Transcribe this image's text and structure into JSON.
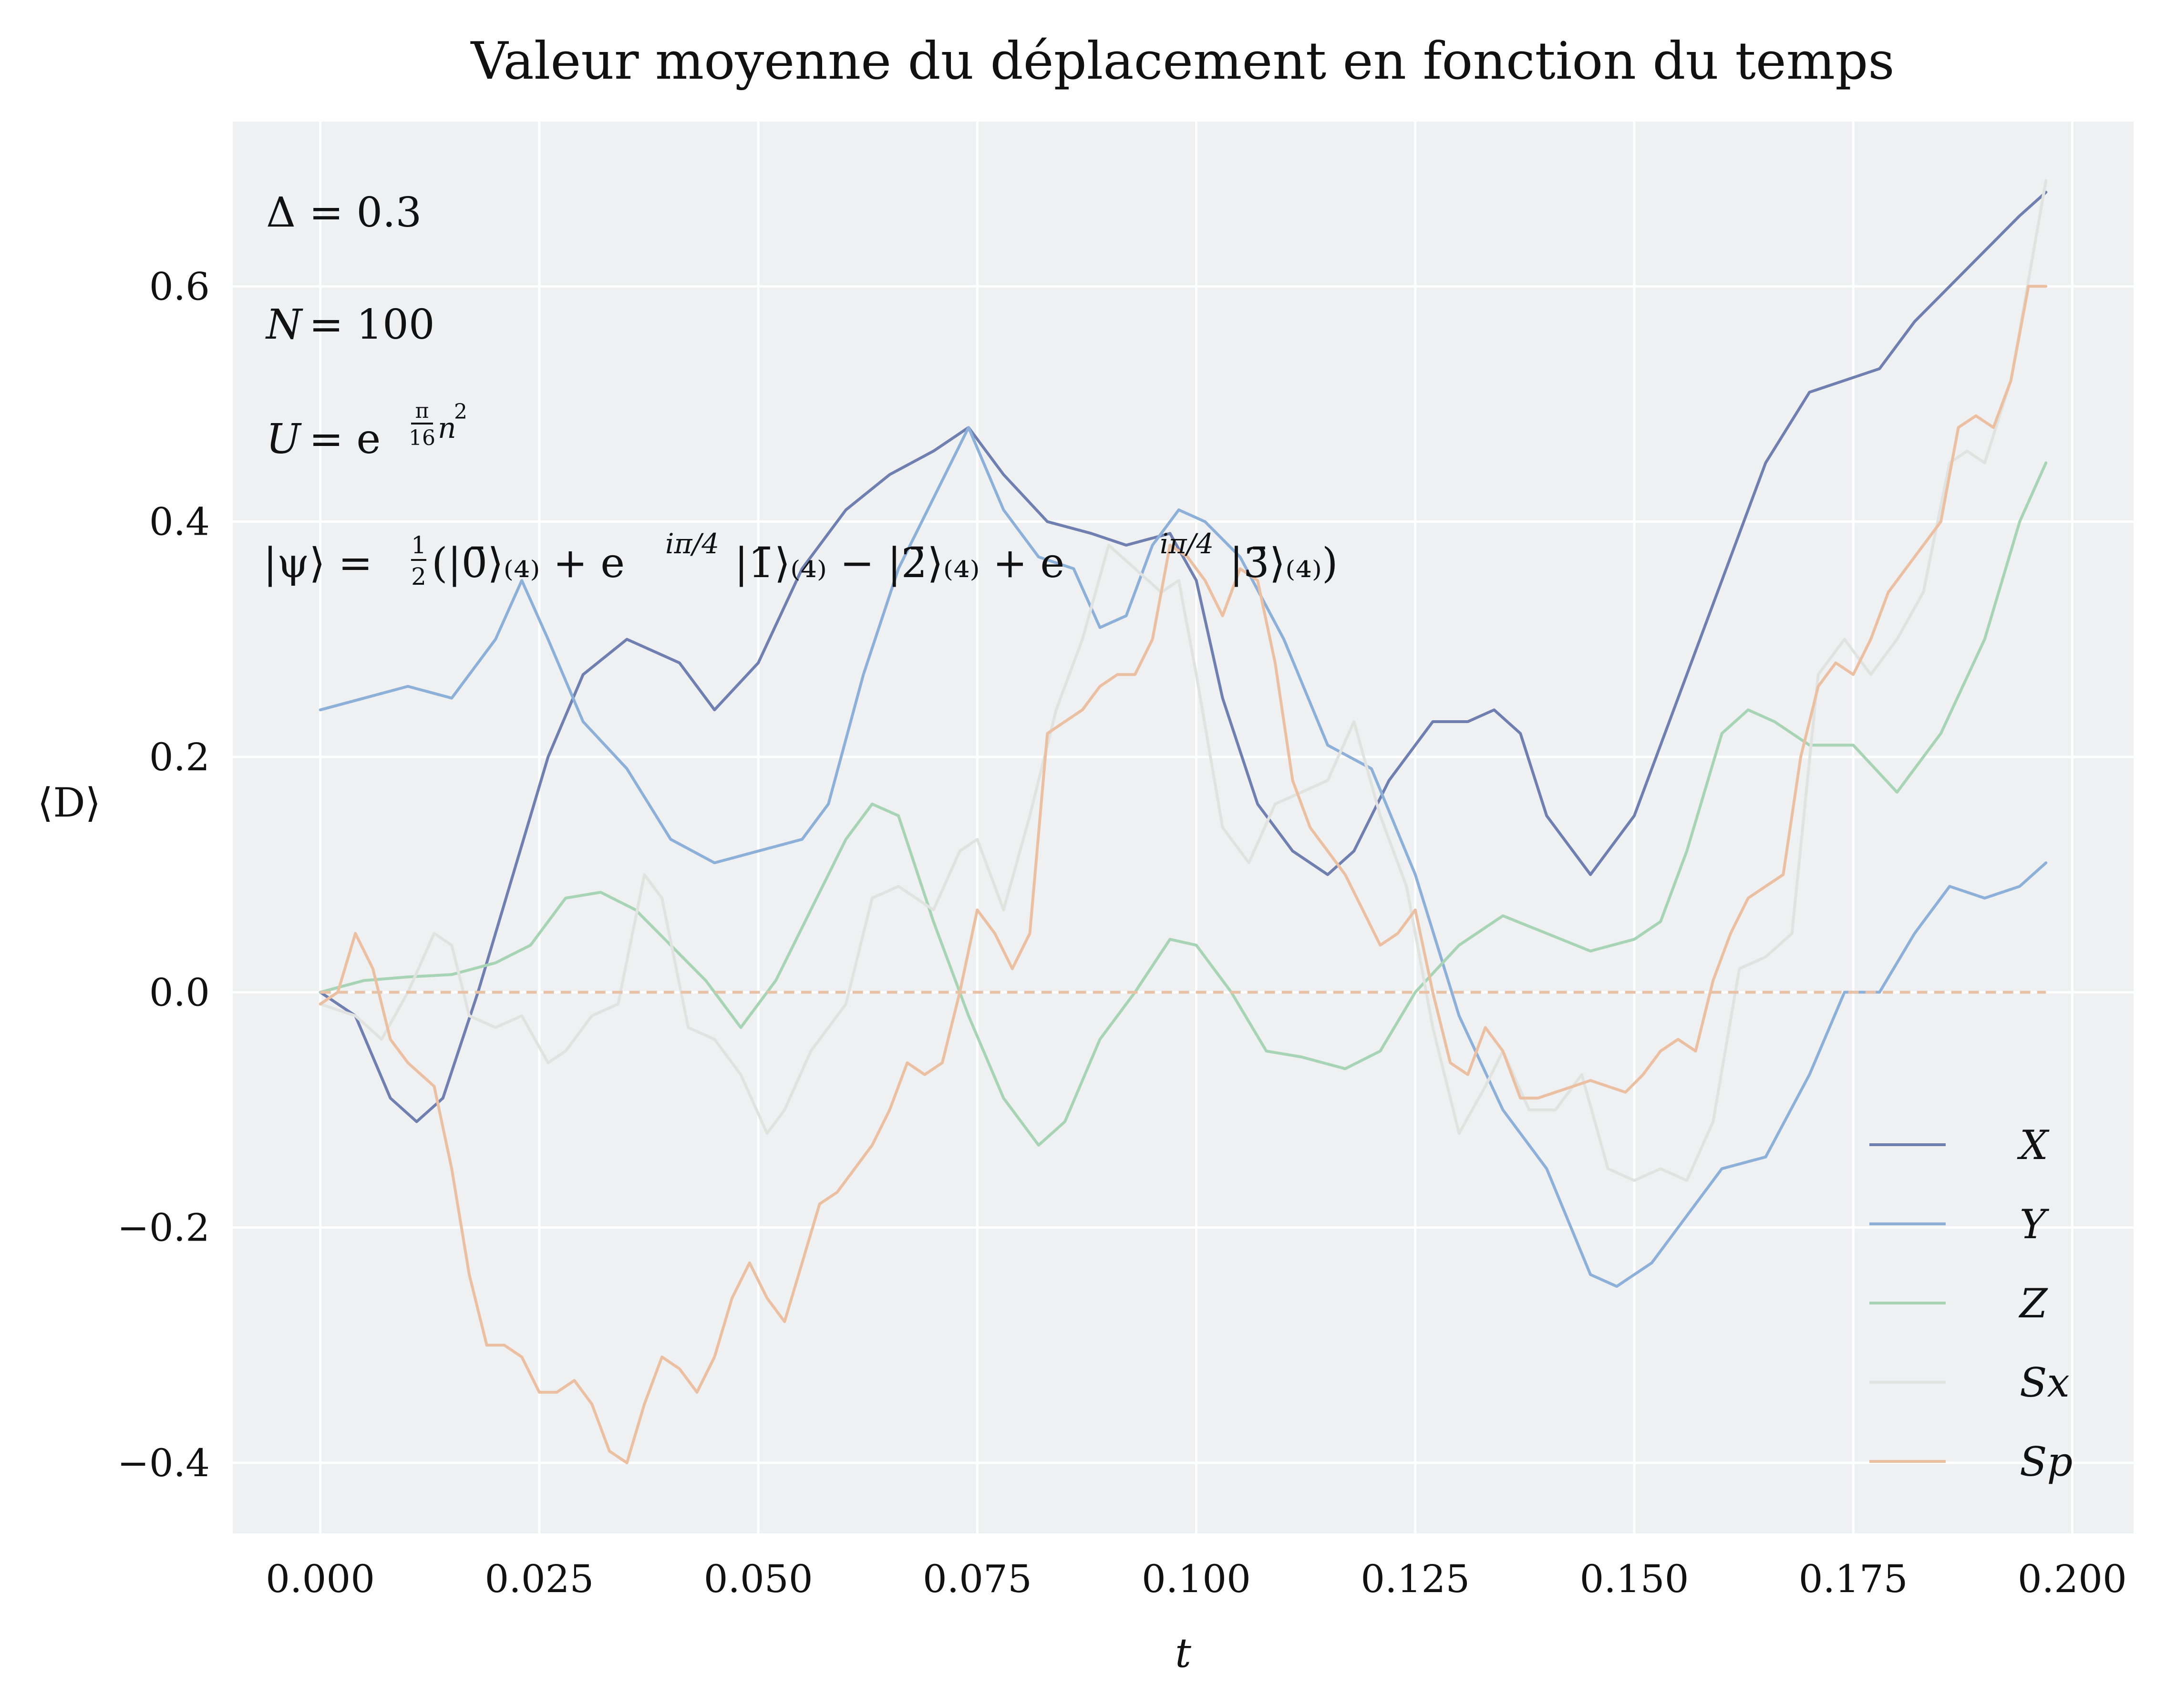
{
  "chart_data": {
    "type": "line",
    "title": "Valeur moyenne du déplacement en fonction du temps",
    "xlabel": "t",
    "ylabel": "⟨D⟩",
    "xlim": [
      -0.01,
      0.207
    ],
    "ylim": [
      -0.46,
      0.74
    ],
    "xticks": [
      0.0,
      0.025,
      0.05,
      0.075,
      0.1,
      0.125,
      0.15,
      0.175,
      0.2
    ],
    "xtick_labels": [
      "0.000",
      "0.025",
      "0.050",
      "0.075",
      "0.100",
      "0.125",
      "0.150",
      "0.175",
      "0.200"
    ],
    "yticks": [
      -0.4,
      -0.2,
      0.0,
      0.2,
      0.4,
      0.6
    ],
    "ytick_labels": [
      "−0.4",
      "−0.2",
      "0.0",
      "0.2",
      "0.4",
      "0.6"
    ],
    "grid": true,
    "legend": "bottom-right",
    "annotations": {
      "delta_sym": "Δ",
      "delta_eq": "= 0.3",
      "n_sym": "N",
      "n_eq": "= 100",
      "u_sym": "U",
      "u_eq": "= e",
      "u_exp_num": "π",
      "u_exp_den": "16",
      "u_exp_tail": "n",
      "u_exp_sq": "2",
      "psi_lhs": "|ψ⟩ =",
      "psi_half_num": "1",
      "psi_half_den": "2",
      "psi_rhs": "(|0̄⟩₍₄₎ + e",
      "psi_phase1": "iπ/4",
      "psi_mid": "|1̄⟩₍₄₎ − |2̄⟩₍₄₎ + e",
      "psi_phase2": "iπ/4",
      "psi_end": "|3̄⟩₍₄₎)"
    },
    "reference_line": {
      "y": 0.0,
      "style": "dashed",
      "color": "#e8c2a6"
    },
    "series": [
      {
        "name": "X",
        "color": "#6f7fb0",
        "x": [
          0.0,
          0.004,
          0.008,
          0.011,
          0.014,
          0.018,
          0.022,
          0.026,
          0.03,
          0.035,
          0.041,
          0.045,
          0.05,
          0.055,
          0.06,
          0.065,
          0.07,
          0.074,
          0.078,
          0.083,
          0.088,
          0.092,
          0.097,
          0.1,
          0.103,
          0.107,
          0.111,
          0.115,
          0.118,
          0.122,
          0.127,
          0.131,
          0.134,
          0.137,
          0.14,
          0.145,
          0.15,
          0.155,
          0.16,
          0.165,
          0.17,
          0.174,
          0.178,
          0.182,
          0.186,
          0.19,
          0.194,
          0.197
        ],
        "y": [
          0.0,
          -0.02,
          -0.09,
          -0.11,
          -0.09,
          0.0,
          0.1,
          0.2,
          0.27,
          0.3,
          0.28,
          0.24,
          0.28,
          0.36,
          0.41,
          0.44,
          0.46,
          0.48,
          0.44,
          0.4,
          0.39,
          0.38,
          0.39,
          0.35,
          0.25,
          0.16,
          0.12,
          0.1,
          0.12,
          0.18,
          0.23,
          0.23,
          0.24,
          0.22,
          0.15,
          0.1,
          0.15,
          0.25,
          0.35,
          0.45,
          0.51,
          0.52,
          0.53,
          0.57,
          0.6,
          0.63,
          0.66,
          0.68
        ]
      },
      {
        "name": "Y",
        "color": "#8db0d9",
        "x": [
          0.0,
          0.005,
          0.01,
          0.015,
          0.02,
          0.023,
          0.026,
          0.03,
          0.035,
          0.04,
          0.045,
          0.05,
          0.055,
          0.058,
          0.062,
          0.066,
          0.07,
          0.074,
          0.078,
          0.082,
          0.086,
          0.089,
          0.092,
          0.095,
          0.098,
          0.101,
          0.105,
          0.11,
          0.115,
          0.12,
          0.125,
          0.13,
          0.135,
          0.14,
          0.145,
          0.148,
          0.152,
          0.156,
          0.16,
          0.165,
          0.17,
          0.174,
          0.178,
          0.182,
          0.186,
          0.19,
          0.194,
          0.197
        ],
        "y": [
          0.24,
          0.25,
          0.26,
          0.25,
          0.3,
          0.35,
          0.3,
          0.23,
          0.19,
          0.13,
          0.11,
          0.12,
          0.13,
          0.16,
          0.27,
          0.36,
          0.42,
          0.48,
          0.41,
          0.37,
          0.36,
          0.31,
          0.32,
          0.38,
          0.41,
          0.4,
          0.37,
          0.3,
          0.21,
          0.19,
          0.1,
          -0.02,
          -0.1,
          -0.15,
          -0.24,
          -0.25,
          -0.23,
          -0.19,
          -0.15,
          -0.14,
          -0.07,
          0.0,
          0.0,
          0.05,
          0.09,
          0.08,
          0.09,
          0.11
        ]
      },
      {
        "name": "Z",
        "color": "#a6d4b4",
        "x": [
          0.0,
          0.005,
          0.01,
          0.015,
          0.02,
          0.024,
          0.028,
          0.032,
          0.036,
          0.04,
          0.044,
          0.048,
          0.052,
          0.056,
          0.06,
          0.063,
          0.066,
          0.07,
          0.074,
          0.078,
          0.082,
          0.085,
          0.089,
          0.093,
          0.097,
          0.1,
          0.104,
          0.108,
          0.112,
          0.117,
          0.121,
          0.125,
          0.13,
          0.135,
          0.14,
          0.145,
          0.15,
          0.153,
          0.156,
          0.16,
          0.163,
          0.166,
          0.17,
          0.175,
          0.18,
          0.185,
          0.19,
          0.194,
          0.197
        ],
        "y": [
          0.0,
          0.01,
          0.013,
          0.015,
          0.025,
          0.04,
          0.08,
          0.085,
          0.07,
          0.04,
          0.01,
          -0.03,
          0.01,
          0.07,
          0.13,
          0.16,
          0.15,
          0.06,
          -0.02,
          -0.09,
          -0.13,
          -0.11,
          -0.04,
          0.0,
          0.045,
          0.04,
          0.0,
          -0.05,
          -0.055,
          -0.065,
          -0.05,
          0.0,
          0.04,
          0.065,
          0.05,
          0.035,
          0.045,
          0.06,
          0.12,
          0.22,
          0.24,
          0.23,
          0.21,
          0.21,
          0.17,
          0.22,
          0.3,
          0.4,
          0.45
        ]
      },
      {
        "name": "Sx",
        "color": "#e1e3e0",
        "x": [
          0.0,
          0.004,
          0.007,
          0.01,
          0.013,
          0.015,
          0.017,
          0.02,
          0.023,
          0.026,
          0.028,
          0.031,
          0.034,
          0.037,
          0.039,
          0.042,
          0.045,
          0.048,
          0.051,
          0.053,
          0.056,
          0.06,
          0.063,
          0.066,
          0.07,
          0.073,
          0.075,
          0.078,
          0.081,
          0.084,
          0.087,
          0.09,
          0.093,
          0.096,
          0.098,
          0.1,
          0.103,
          0.106,
          0.109,
          0.112,
          0.115,
          0.118,
          0.121,
          0.124,
          0.127,
          0.13,
          0.133,
          0.135,
          0.138,
          0.141,
          0.144,
          0.147,
          0.15,
          0.153,
          0.156,
          0.159,
          0.162,
          0.165,
          0.168,
          0.171,
          0.174,
          0.177,
          0.18,
          0.183,
          0.186,
          0.188,
          0.19,
          0.193,
          0.197
        ],
        "y": [
          -0.01,
          -0.02,
          -0.04,
          0.0,
          0.05,
          0.04,
          -0.02,
          -0.03,
          -0.02,
          -0.06,
          -0.05,
          -0.02,
          -0.01,
          0.1,
          0.08,
          -0.03,
          -0.04,
          -0.07,
          -0.12,
          -0.1,
          -0.05,
          -0.01,
          0.08,
          0.09,
          0.07,
          0.12,
          0.13,
          0.07,
          0.15,
          0.24,
          0.3,
          0.38,
          0.36,
          0.34,
          0.35,
          0.27,
          0.14,
          0.11,
          0.16,
          0.17,
          0.18,
          0.23,
          0.15,
          0.09,
          -0.03,
          -0.12,
          -0.08,
          -0.05,
          -0.1,
          -0.1,
          -0.07,
          -0.15,
          -0.16,
          -0.15,
          -0.16,
          -0.11,
          0.02,
          0.03,
          0.05,
          0.27,
          0.3,
          0.27,
          0.3,
          0.34,
          0.45,
          0.46,
          0.45,
          0.52,
          0.69
        ]
      },
      {
        "name": "Sp",
        "color": "#ebc0a2",
        "x": [
          0.0,
          0.002,
          0.004,
          0.006,
          0.008,
          0.01,
          0.013,
          0.015,
          0.017,
          0.019,
          0.021,
          0.023,
          0.025,
          0.027,
          0.029,
          0.031,
          0.033,
          0.035,
          0.037,
          0.039,
          0.041,
          0.043,
          0.045,
          0.047,
          0.049,
          0.051,
          0.053,
          0.055,
          0.057,
          0.059,
          0.061,
          0.063,
          0.065,
          0.067,
          0.069,
          0.071,
          0.073,
          0.075,
          0.077,
          0.079,
          0.081,
          0.083,
          0.085,
          0.087,
          0.089,
          0.091,
          0.093,
          0.095,
          0.097,
          0.099,
          0.101,
          0.103,
          0.105,
          0.107,
          0.109,
          0.111,
          0.113,
          0.115,
          0.117,
          0.119,
          0.121,
          0.123,
          0.125,
          0.127,
          0.129,
          0.131,
          0.133,
          0.135,
          0.137,
          0.139,
          0.141,
          0.143,
          0.145,
          0.147,
          0.149,
          0.151,
          0.153,
          0.155,
          0.157,
          0.159,
          0.161,
          0.163,
          0.165,
          0.167,
          0.169,
          0.171,
          0.173,
          0.175,
          0.177,
          0.179,
          0.181,
          0.183,
          0.185,
          0.187,
          0.189,
          0.191,
          0.193,
          0.195,
          0.197
        ],
        "y": [
          -0.01,
          0.0,
          0.05,
          0.02,
          -0.04,
          -0.06,
          -0.08,
          -0.15,
          -0.24,
          -0.3,
          -0.3,
          -0.31,
          -0.34,
          -0.34,
          -0.33,
          -0.35,
          -0.39,
          -0.4,
          -0.35,
          -0.31,
          -0.32,
          -0.34,
          -0.31,
          -0.26,
          -0.23,
          -0.26,
          -0.28,
          -0.23,
          -0.18,
          -0.17,
          -0.15,
          -0.13,
          -0.1,
          -0.06,
          -0.07,
          -0.06,
          0.0,
          0.07,
          0.05,
          0.02,
          0.05,
          0.22,
          0.23,
          0.24,
          0.26,
          0.27,
          0.27,
          0.3,
          0.38,
          0.37,
          0.35,
          0.32,
          0.36,
          0.35,
          0.28,
          0.18,
          0.14,
          0.12,
          0.1,
          0.07,
          0.04,
          0.05,
          0.07,
          0.0,
          -0.06,
          -0.07,
          -0.03,
          -0.05,
          -0.09,
          -0.09,
          -0.085,
          -0.08,
          -0.075,
          -0.08,
          -0.085,
          -0.07,
          -0.05,
          -0.04,
          -0.05,
          0.01,
          0.05,
          0.08,
          0.09,
          0.1,
          0.2,
          0.26,
          0.28,
          0.27,
          0.3,
          0.34,
          0.36,
          0.38,
          0.4,
          0.48,
          0.49,
          0.48,
          0.52,
          0.6,
          0.6
        ]
      }
    ]
  }
}
